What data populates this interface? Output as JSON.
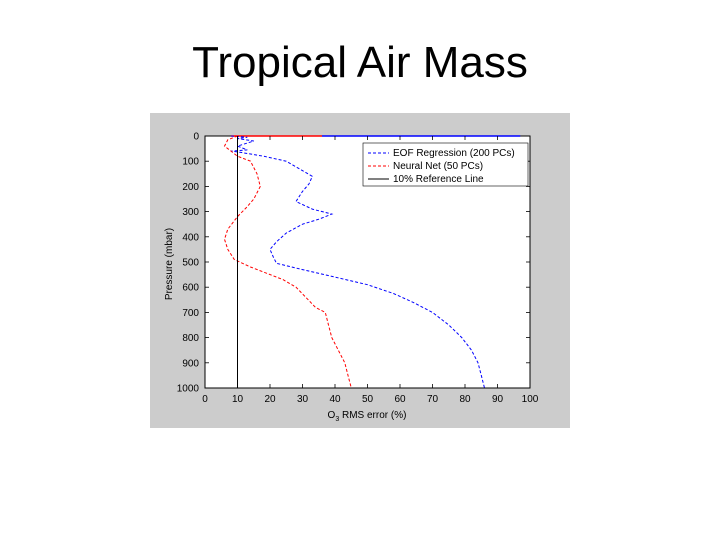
{
  "slide": {
    "title": "Tropical Air Mass"
  },
  "chart_data": {
    "type": "line",
    "xlabel": "O3 RMS error (%)",
    "xlabel_main": "O",
    "xlabel_sub": "3",
    "xlabel_rest": " RMS error (%)",
    "ylabel": "Pressure (mbar)",
    "xlim": [
      0,
      100
    ],
    "ylim": [
      1000,
      0
    ],
    "y_reversed": true,
    "xticks": [
      0,
      10,
      20,
      30,
      40,
      50,
      60,
      70,
      80,
      90,
      100
    ],
    "yticks": [
      0,
      100,
      200,
      300,
      400,
      500,
      600,
      700,
      800,
      900,
      1000
    ],
    "grid": false,
    "legend_position": "top-right",
    "series": [
      {
        "name": "EOF Regression (200 PCs)",
        "color": "#0000ff",
        "dash": "3,2",
        "points": [
          [
            8,
            0
          ],
          [
            13,
            5
          ],
          [
            10,
            10
          ],
          [
            15,
            20
          ],
          [
            10,
            40
          ],
          [
            13,
            55
          ],
          [
            8,
            60
          ],
          [
            11,
            65
          ],
          [
            18,
            80
          ],
          [
            25,
            100
          ],
          [
            33,
            160
          ],
          [
            32,
            190
          ],
          [
            30,
            220
          ],
          [
            28,
            260
          ],
          [
            33,
            290
          ],
          [
            39,
            310
          ],
          [
            35,
            330
          ],
          [
            30,
            350
          ],
          [
            25,
            385
          ],
          [
            22,
            420
          ],
          [
            20,
            450
          ],
          [
            21,
            480
          ],
          [
            22,
            505
          ],
          [
            30,
            530
          ],
          [
            40,
            560
          ],
          [
            50,
            590
          ],
          [
            58,
            625
          ],
          [
            64,
            660
          ],
          [
            70,
            700
          ],
          [
            75,
            750
          ],
          [
            79,
            800
          ],
          [
            82,
            850
          ],
          [
            84,
            900
          ],
          [
            85,
            950
          ],
          [
            86,
            1000
          ]
        ]
      },
      {
        "name": "Neural Net (50 PCs)",
        "color": "#ff0000",
        "dash": "3,2",
        "points": [
          [
            10,
            0
          ],
          [
            7,
            15
          ],
          [
            6,
            40
          ],
          [
            8,
            60
          ],
          [
            10,
            80
          ],
          [
            14,
            100
          ],
          [
            16,
            150
          ],
          [
            17,
            200
          ],
          [
            15,
            250
          ],
          [
            13,
            280
          ],
          [
            10,
            320
          ],
          [
            7,
            370
          ],
          [
            6,
            410
          ],
          [
            7,
            450
          ],
          [
            9,
            490
          ],
          [
            14,
            520
          ],
          [
            19,
            545
          ],
          [
            24,
            570
          ],
          [
            28,
            600
          ],
          [
            31,
            640
          ],
          [
            34,
            680
          ],
          [
            37,
            700
          ],
          [
            38,
            750
          ],
          [
            39,
            800
          ],
          [
            41,
            850
          ],
          [
            43,
            900
          ],
          [
            44,
            950
          ],
          [
            45,
            1000
          ]
        ]
      },
      {
        "name": "10% Reference Line",
        "color": "#000000",
        "dash": "",
        "points": [
          [
            10,
            0
          ],
          [
            10,
            1000
          ]
        ]
      }
    ],
    "top_segments": [
      {
        "color": "#ff0000",
        "from": 8,
        "to": 36,
        "y": 0
      },
      {
        "color": "#0000ff",
        "from": 36,
        "to": 97,
        "y": 0
      }
    ]
  }
}
